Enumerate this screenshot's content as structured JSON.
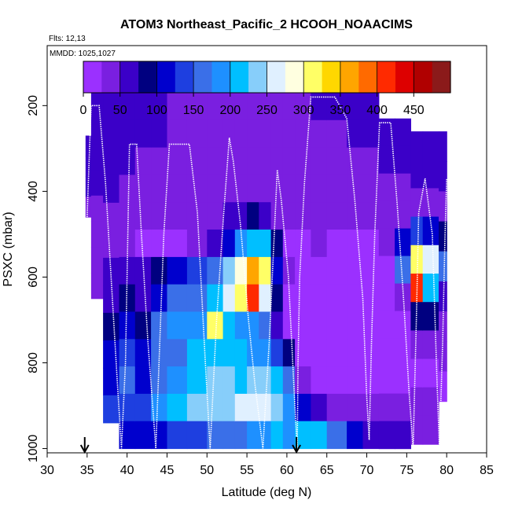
{
  "chart_data": {
    "type": "heatmap",
    "title": "ATOM3 Northeast_Pacific_2 HCOOH_NOAACIMS",
    "flights_text": "Flts: 12,13",
    "mmdd_text": "MMDD: 1025,1027",
    "xlabel": "Latitude (deg N)",
    "ylabel": "PSXC (mbar)",
    "xlim": [
      30,
      85
    ],
    "ylim": [
      1010,
      60
    ],
    "x_ticks": [
      30,
      35,
      40,
      45,
      50,
      55,
      60,
      65,
      70,
      75,
      80,
      85
    ],
    "y_ticks": [
      200,
      400,
      600,
      800,
      1000
    ],
    "colorbar": {
      "range": [
        0,
        500
      ],
      "ticks": [
        0,
        50,
        100,
        150,
        200,
        250,
        300,
        350,
        400,
        450
      ],
      "colors": [
        "#9b30ff",
        "#7a1fe0",
        "#3b00c8",
        "#000080",
        "#0000cd",
        "#1e3fe0",
        "#3a6fe8",
        "#1e90ff",
        "#00bfff",
        "#87cefa",
        "#e0f0ff",
        "#ffffe0",
        "#ffff66",
        "#ffd700",
        "#ffa500",
        "#ff6a00",
        "#ff2a00",
        "#dd0000",
        "#b00000",
        "#8b1a1a"
      ]
    },
    "columns": [
      {
        "lat": [
          34.8,
          35.5
        ],
        "top": 270,
        "bottom": 460,
        "v": [
          60,
          55,
          50,
          45
        ]
      },
      {
        "lat": [
          35.5,
          37.0
        ],
        "top": 170,
        "bottom": 650,
        "v": [
          60,
          60,
          55,
          50,
          45,
          40,
          40,
          45
        ]
      },
      {
        "lat": [
          37.0,
          39.0
        ],
        "top": 170,
        "bottom": 940,
        "v": [
          60,
          60,
          55,
          50,
          45,
          40,
          60,
          70,
          90,
          110,
          120,
          130
        ]
      },
      {
        "lat": [
          39.0,
          41.0
        ],
        "top": 170,
        "bottom": 1000,
        "v": [
          55,
          55,
          50,
          45,
          40,
          30,
          60,
          80,
          110,
          130,
          150,
          140,
          110
        ]
      },
      {
        "lat": [
          41.0,
          43.0
        ],
        "top": 170,
        "bottom": 1000,
        "v": [
          55,
          50,
          45,
          40,
          30,
          20,
          60,
          70,
          90,
          110,
          120,
          130,
          100
        ]
      },
      {
        "lat": [
          43.0,
          45.0
        ],
        "top": 170,
        "bottom": 1000,
        "v": [
          50,
          50,
          45,
          40,
          30,
          15,
          80,
          120,
          150,
          170,
          160,
          180,
          120
        ]
      },
      {
        "lat": [
          45.0,
          47.5
        ],
        "top": 170,
        "bottom": 1000,
        "v": [
          45,
          45,
          40,
          35,
          30,
          20,
          100,
          150,
          180,
          170,
          190,
          200,
          130
        ]
      },
      {
        "lat": [
          47.5,
          50.0
        ],
        "top": 170,
        "bottom": 1000,
        "v": [
          45,
          40,
          35,
          35,
          30,
          40,
          130,
          160,
          190,
          210,
          220,
          230,
          140
        ]
      },
      {
        "lat": [
          50.0,
          52.0
        ],
        "top": 170,
        "bottom": 1000,
        "v": [
          40,
          40,
          35,
          30,
          40,
          60,
          150,
          200,
          300,
          220,
          240,
          230,
          150
        ]
      },
      {
        "lat": [
          52.0,
          53.5
        ],
        "top": 170,
        "bottom": 1000,
        "v": [
          40,
          35,
          30,
          30,
          50,
          120,
          230,
          250,
          200,
          210,
          230,
          240,
          160
        ]
      },
      {
        "lat": [
          53.5,
          55.0
        ],
        "top": 170,
        "bottom": 1000,
        "v": [
          40,
          35,
          30,
          35,
          60,
          180,
          280,
          300,
          190,
          200,
          220,
          250,
          170
        ]
      },
      {
        "lat": [
          55.0,
          56.5
        ],
        "top": 170,
        "bottom": 1000,
        "v": [
          40,
          35,
          30,
          40,
          80,
          220,
          350,
          420,
          180,
          190,
          230,
          260,
          180
        ]
      },
      {
        "lat": [
          56.5,
          58.0
        ],
        "top": 170,
        "bottom": 1000,
        "v": [
          40,
          40,
          35,
          40,
          70,
          200,
          300,
          250,
          150,
          180,
          240,
          250,
          190
        ]
      },
      {
        "lat": [
          58.0,
          59.5
        ],
        "top": 170,
        "bottom": 1000,
        "v": [
          40,
          40,
          35,
          30,
          40,
          80,
          120,
          90,
          60,
          130,
          200,
          240,
          200
        ]
      },
      {
        "lat": [
          59.5,
          61.0
        ],
        "top": 170,
        "bottom": 1000,
        "v": [
          45,
          40,
          35,
          30,
          25,
          20,
          30,
          20,
          15,
          80,
          150,
          180,
          190
        ]
      },
      {
        "lat": [
          61.0,
          63.0
        ],
        "top": 170,
        "bottom": 1000,
        "v": [
          45,
          40,
          35,
          30,
          25,
          20,
          20,
          15,
          15,
          20,
          40,
          120,
          210
        ]
      },
      {
        "lat": [
          63.0,
          65.0
        ],
        "top": 170,
        "bottom": 1000,
        "v": [
          50,
          45,
          40,
          35,
          30,
          25,
          20,
          15,
          15,
          15,
          20,
          60,
          200
        ]
      },
      {
        "lat": [
          65.0,
          67.5
        ],
        "top": 170,
        "bottom": 1000,
        "v": [
          50,
          45,
          40,
          35,
          25,
          20,
          15,
          15,
          15,
          15,
          20,
          40,
          170
        ]
      },
      {
        "lat": [
          67.5,
          69.5
        ],
        "top": 170,
        "bottom": 1000,
        "v": [
          55,
          50,
          45,
          35,
          25,
          20,
          15,
          15,
          15,
          15,
          15,
          25,
          120
        ]
      },
      {
        "lat": [
          69.5,
          71.5
        ],
        "top": 170,
        "bottom": 1000,
        "v": [
          55,
          50,
          45,
          40,
          30,
          20,
          15,
          15,
          15,
          20,
          20,
          25,
          60
        ]
      },
      {
        "lat": [
          71.5,
          73.5
        ],
        "top": 230,
        "bottom": 1000,
        "v": [
          55,
          50,
          45,
          40,
          30,
          20,
          15,
          15,
          15,
          20,
          25,
          50
        ]
      },
      {
        "lat": [
          73.5,
          75.5
        ],
        "top": 230,
        "bottom": 1000,
        "v": [
          55,
          50,
          45,
          40,
          120,
          150,
          40,
          20,
          15,
          20,
          30,
          60
        ]
      },
      {
        "lat": [
          75.5,
          77.0
        ],
        "top": 260,
        "bottom": 990,
        "v": [
          55,
          50,
          45,
          130,
          300,
          420,
          90,
          30,
          20,
          25,
          40
        ]
      },
      {
        "lat": [
          77.0,
          79.0
        ],
        "top": 260,
        "bottom": 990,
        "v": [
          55,
          50,
          45,
          120,
          250,
          200,
          80,
          30,
          20,
          30,
          40
        ]
      },
      {
        "lat": [
          79.0,
          80.0
        ],
        "top": 260,
        "bottom": 890,
        "v": [
          55,
          50,
          45,
          90,
          150,
          60,
          30,
          25,
          20
        ]
      }
    ],
    "flight_track": [
      [
        35.0,
        460
      ],
      [
        35.3,
        300
      ],
      [
        35.5,
        200
      ],
      [
        36.5,
        200
      ],
      [
        37.3,
        380
      ],
      [
        38.0,
        600
      ],
      [
        38.8,
        850
      ],
      [
        39.3,
        1000
      ],
      [
        39.8,
        800
      ],
      [
        40.0,
        600
      ],
      [
        40.3,
        290
      ],
      [
        41.2,
        290
      ],
      [
        41.8,
        500
      ],
      [
        42.6,
        750
      ],
      [
        43.6,
        1000
      ],
      [
        44.2,
        700
      ],
      [
        44.6,
        500
      ],
      [
        45.3,
        290
      ],
      [
        47.8,
        290
      ],
      [
        48.8,
        450
      ],
      [
        49.8,
        800
      ],
      [
        50.4,
        1000
      ],
      [
        51.2,
        700
      ],
      [
        52.1,
        450
      ],
      [
        52.8,
        275
      ],
      [
        53.3,
        330
      ],
      [
        54.2,
        480
      ],
      [
        55.2,
        700
      ],
      [
        56.0,
        850
      ],
      [
        57.0,
        1000
      ],
      [
        57.8,
        750
      ],
      [
        58.3,
        550
      ],
      [
        58.8,
        350
      ],
      [
        59.3,
        420
      ],
      [
        60.2,
        600
      ],
      [
        61.0,
        900
      ],
      [
        61.3,
        1000
      ],
      [
        61.4,
        800
      ],
      [
        61.6,
        600
      ],
      [
        62.2,
        380
      ],
      [
        63.0,
        180
      ],
      [
        66.0,
        180
      ],
      [
        67.5,
        230
      ],
      [
        68.5,
        420
      ],
      [
        69.5,
        650
      ],
      [
        70.0,
        880
      ],
      [
        70.3,
        980
      ],
      [
        70.6,
        750
      ],
      [
        71.0,
        500
      ],
      [
        71.6,
        240
      ],
      [
        73.0,
        240
      ],
      [
        73.8,
        430
      ],
      [
        74.6,
        650
      ],
      [
        75.3,
        870
      ],
      [
        75.8,
        1000
      ],
      [
        76.2,
        700
      ],
      [
        76.5,
        450
      ],
      [
        77.3,
        370
      ],
      [
        78.2,
        500
      ],
      [
        78.8,
        850
      ],
      [
        79.1,
        1000
      ],
      [
        79.5,
        750
      ],
      [
        79.8,
        500
      ],
      [
        80.0,
        370
      ]
    ],
    "markers": [
      {
        "lat": 34.7,
        "label": ""
      },
      {
        "lat": 61.2,
        "label": ""
      }
    ]
  }
}
